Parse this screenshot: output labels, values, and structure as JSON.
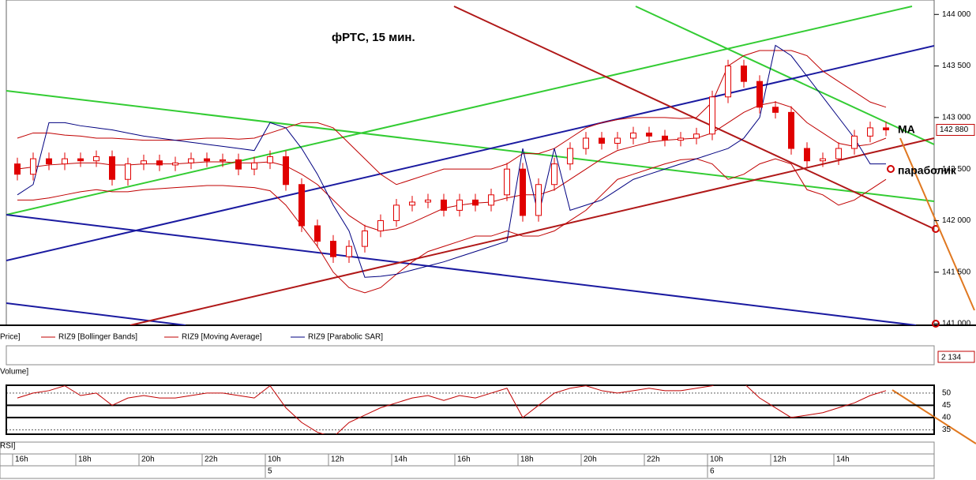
{
  "chart_data": {
    "type": "candlestick",
    "title": "фРТС,  15 мин.",
    "annotations": [
      "MA",
      "параболик"
    ],
    "price_panel_label": "Price]",
    "volume_panel_label": "Volume]",
    "rsi_panel_label": "RSI]",
    "candle_color": "#e00000",
    "categories": [
      "16h",
      null,
      null,
      null,
      "18h",
      null,
      null,
      null,
      "20h",
      null,
      null,
      null,
      "22h",
      null,
      null,
      null,
      "10h",
      null,
      null,
      null,
      "12h",
      null,
      null,
      null,
      "14h",
      null,
      null,
      null,
      "16h",
      null,
      null,
      null,
      "18h",
      null,
      null,
      null,
      "20h",
      null,
      null,
      null,
      "22h",
      null,
      null,
      null,
      "10h",
      null,
      null,
      null,
      "12h",
      null,
      null,
      null,
      "14h",
      null,
      null,
      null
    ],
    "days": [
      null,
      null,
      null,
      null,
      null,
      null,
      null,
      null,
      null,
      null,
      null,
      null,
      null,
      null,
      null,
      null,
      "5",
      null,
      null,
      null,
      null,
      null,
      null,
      null,
      null,
      null,
      null,
      null,
      null,
      null,
      null,
      null,
      null,
      null,
      null,
      null,
      null,
      null,
      null,
      null,
      null,
      null,
      null,
      null,
      "6",
      null,
      null,
      null,
      null,
      null,
      null,
      null,
      null,
      null,
      null,
      null
    ],
    "open": [
      142550,
      142450,
      142600,
      142550,
      142600,
      142580,
      142620,
      142400,
      142550,
      142580,
      142540,
      142560,
      142600,
      142580,
      142590,
      142500,
      142560,
      142620,
      142350,
      141950,
      141800,
      141650,
      141750,
      141900,
      142000,
      142150,
      142180,
      142200,
      142100,
      142200,
      142150,
      142250,
      142500,
      142050,
      142350,
      142550,
      142700,
      142800,
      142750,
      142800,
      142850,
      142820,
      142780,
      142800,
      142840,
      143200,
      143500,
      143350,
      143100,
      143050,
      142700,
      142580,
      142600,
      142700,
      142820,
      142900
    ],
    "high": [
      142610,
      142660,
      142660,
      142660,
      142660,
      142680,
      142680,
      142610,
      142640,
      142640,
      142620,
      142660,
      142660,
      142650,
      142650,
      142620,
      142680,
      142680,
      142410,
      142010,
      141860,
      141810,
      141960,
      142060,
      142210,
      142240,
      142260,
      142260,
      142260,
      142260,
      142310,
      142560,
      142560,
      142410,
      142610,
      142760,
      142860,
      142860,
      142860,
      142910,
      142910,
      142880,
      142860,
      142900,
      143260,
      143560,
      143560,
      143410,
      143160,
      143110,
      142760,
      142660,
      142760,
      142880,
      142960,
      142960
    ],
    "low": [
      142390,
      142390,
      142490,
      142490,
      142520,
      142520,
      142340,
      142340,
      142490,
      142480,
      142480,
      142500,
      142520,
      142520,
      142440,
      142440,
      142500,
      142290,
      141890,
      141740,
      141590,
      141590,
      141690,
      141840,
      141940,
      142090,
      142120,
      142040,
      142040,
      142090,
      142090,
      142190,
      141990,
      141990,
      142290,
      142490,
      142640,
      142690,
      142690,
      142740,
      142760,
      142720,
      142720,
      142740,
      142780,
      143140,
      143290,
      143040,
      142990,
      142640,
      142520,
      142520,
      142540,
      142640,
      142760,
      142820
    ],
    "close": [
      142450,
      142600,
      142550,
      142600,
      142580,
      142620,
      142400,
      142550,
      142580,
      142540,
      142560,
      142600,
      142580,
      142590,
      142500,
      142560,
      142620,
      142350,
      141950,
      141800,
      141650,
      141750,
      141900,
      142000,
      142150,
      142180,
      142200,
      142100,
      142200,
      142150,
      142250,
      142500,
      142050,
      142350,
      142550,
      142700,
      142800,
      142750,
      142800,
      142850,
      142820,
      142780,
      142800,
      142840,
      143200,
      143500,
      143350,
      143100,
      143050,
      142700,
      142580,
      142600,
      142700,
      142820,
      142900,
      142880
    ],
    "last_price_label": "142 880",
    "bands": {
      "name": "RIZ9 [Bollinger Bands]",
      "color": "#c00000",
      "upper": [
        142800,
        142850,
        142850,
        142830,
        142820,
        142800,
        142800,
        142790,
        142780,
        142780,
        142780,
        142790,
        142800,
        142800,
        142790,
        142800,
        142850,
        142900,
        142950,
        142950,
        142900,
        142750,
        142600,
        142450,
        142350,
        142400,
        142450,
        142500,
        142500,
        142500,
        142500,
        142550,
        142650,
        142650,
        142700,
        142800,
        142900,
        142950,
        142980,
        143000,
        143000,
        143000,
        142990,
        143000,
        143150,
        143500,
        143600,
        143650,
        143650,
        143650,
        143600,
        143450,
        143350,
        143250,
        143150,
        143100
      ],
      "lower": [
        142200,
        142200,
        142220,
        142250,
        142280,
        142300,
        142280,
        142280,
        142300,
        142310,
        142320,
        142330,
        142340,
        142340,
        142330,
        142320,
        142290,
        142150,
        141950,
        141750,
        141500,
        141350,
        141300,
        141350,
        141480,
        141600,
        141700,
        141750,
        141800,
        141850,
        141850,
        141900,
        141850,
        141850,
        141900,
        142000,
        142100,
        142250,
        142400,
        142450,
        142500,
        142550,
        142590,
        142600,
        142550,
        142400,
        142450,
        142550,
        142600,
        142550,
        142300,
        142250,
        142150,
        142200,
        142300,
        142400
      ]
    },
    "series": [
      {
        "name": "RIZ9 [Moving Average]",
        "color": "#c00000",
        "values": [
          142500,
          142520,
          142540,
          142550,
          142560,
          142560,
          142540,
          142540,
          142550,
          142550,
          142550,
          142560,
          142570,
          142570,
          142560,
          142560,
          142570,
          142530,
          142450,
          142350,
          142200,
          142050,
          141950,
          141900,
          141920,
          141980,
          142050,
          142120,
          142150,
          142170,
          142180,
          142220,
          142250,
          142250,
          142300,
          142400,
          142500,
          142600,
          142680,
          142720,
          142760,
          142780,
          142790,
          142800,
          142850,
          142950,
          143050,
          143120,
          143150,
          143100,
          142950,
          142850,
          142750,
          142720,
          142740,
          142800
        ]
      },
      {
        "name": "RIZ9 [Parabolic SAR]",
        "color": "#000080",
        "values": [
          142250,
          142350,
          142950,
          142950,
          142920,
          142900,
          142880,
          142850,
          142820,
          142800,
          142780,
          142760,
          142740,
          142720,
          142700,
          142680,
          142950,
          142900,
          142700,
          142450,
          142150,
          141900,
          141450,
          141460,
          141480,
          141520,
          141560,
          141600,
          141650,
          141700,
          141750,
          141800,
          142700,
          142050,
          142700,
          142100,
          142150,
          142200,
          142300,
          142400,
          142450,
          142500,
          142550,
          142600,
          142650,
          142700,
          142800,
          143000,
          143700,
          143600,
          143400,
          143200,
          143000,
          142800,
          142550,
          142550
        ]
      }
    ],
    "ylim": [
      140985,
      144140
    ],
    "yticks": [
      {
        "value": 141000,
        "label": "141 000"
      },
      {
        "value": 141500,
        "label": "141 500"
      },
      {
        "value": 142000,
        "label": "142 000"
      },
      {
        "value": 142500,
        "label": "142 500"
      },
      {
        "value": 143000,
        "label": "143 000"
      },
      {
        "value": 143500,
        "label": "143 500"
      },
      {
        "value": 144000,
        "label": "144 000"
      }
    ],
    "volume_label": "2 134",
    "rsi": {
      "color": "#c00000",
      "values": [
        48,
        50,
        51,
        53,
        49,
        50,
        45,
        48,
        49,
        48,
        48,
        49,
        50,
        50,
        49,
        48,
        53,
        44,
        38,
        34,
        32,
        38,
        41,
        44,
        46,
        48,
        49,
        47,
        49,
        48,
        50,
        52,
        40,
        45,
        50,
        52,
        53,
        51,
        50,
        51,
        52,
        51,
        51,
        52,
        53,
        56,
        54,
        48,
        44,
        40,
        41,
        42,
        44,
        46,
        49,
        51
      ],
      "ylim": [
        33.2,
        53.2
      ],
      "yticks": [
        35,
        40,
        45,
        50
      ]
    }
  }
}
